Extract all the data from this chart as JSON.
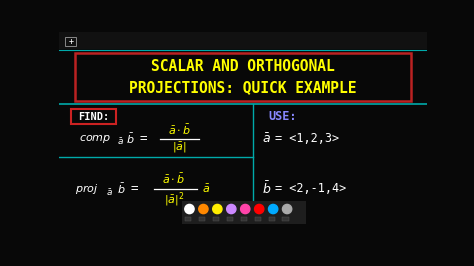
{
  "bg_color": "#080808",
  "title_line1": "SCALAR AND ORTHOGONAL",
  "title_line2": "PROJECTIONS: QUICK EXAMPLE",
  "title_color": "#ffff00",
  "title_box_color": "#bb2222",
  "divider_color": "#00aaaa",
  "find_label": "FIND:",
  "find_color": "#ffffff",
  "find_box_color": "#cc2222",
  "use_color": "#8888ff",
  "formula_yellow": "#ffff00",
  "white": "#ffffff",
  "dot_colors": [
    "#ffffff",
    "#ff8800",
    "#ffee00",
    "#cc88ff",
    "#ff44aa",
    "#ff0000",
    "#00aaff",
    "#aaaaaa"
  ],
  "top_bar_color": "#111111"
}
